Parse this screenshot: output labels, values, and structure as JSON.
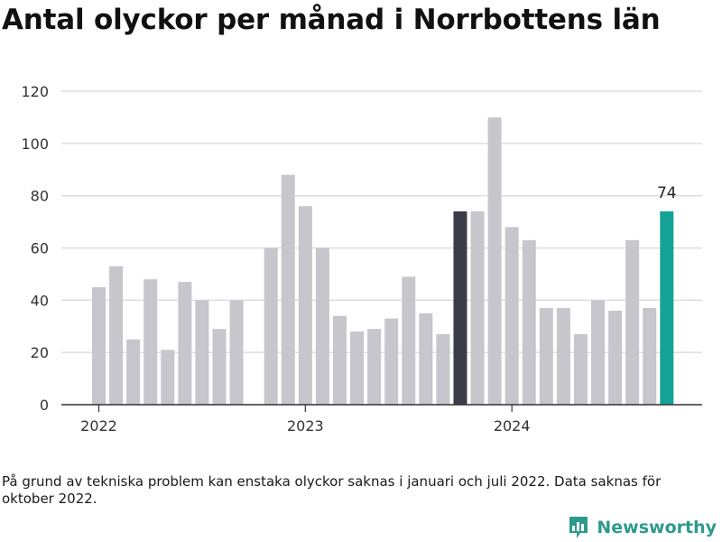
{
  "title": "Antal olyckor per månad i Norrbottens län",
  "note": "På grund av tekniska problem kan enstaka olyckor saknas i januari och juli 2022. Data saknas för oktober 2022.",
  "logo_text": "Newsworthy",
  "colors": {
    "default": "#c7c6cd",
    "highlight_dark": "#3c3b48",
    "highlight_latest": "#14a396",
    "grid": "#dddddd",
    "axis": "#333333"
  },
  "chart_data": {
    "type": "bar",
    "title": "Antal olyckor per månad i Norrbottens län",
    "xlabel": "",
    "ylabel": "",
    "ylim": [
      0,
      120
    ],
    "yticks": [
      0,
      20,
      40,
      60,
      80,
      100,
      120
    ],
    "grid": true,
    "x_tick_labels": [
      {
        "month": "2022-01",
        "label": "2022"
      },
      {
        "month": "2023-01",
        "label": "2023"
      },
      {
        "month": "2024-01",
        "label": "2024"
      }
    ],
    "data_labels": [
      {
        "month": "2024-10",
        "text": "74"
      }
    ],
    "categories": [
      "2022-01",
      "2022-02",
      "2022-03",
      "2022-04",
      "2022-05",
      "2022-06",
      "2022-07",
      "2022-08",
      "2022-09",
      "2022-10",
      "2022-11",
      "2022-12",
      "2023-01",
      "2023-02",
      "2023-03",
      "2023-04",
      "2023-05",
      "2023-06",
      "2023-07",
      "2023-08",
      "2023-09",
      "2023-10",
      "2023-11",
      "2023-12",
      "2024-01",
      "2024-02",
      "2024-03",
      "2024-04",
      "2024-05",
      "2024-06",
      "2024-07",
      "2024-08",
      "2024-09",
      "2024-10"
    ],
    "values": [
      45,
      53,
      25,
      48,
      21,
      47,
      40,
      29,
      40,
      null,
      60,
      88,
      76,
      60,
      34,
      28,
      29,
      33,
      49,
      35,
      27,
      74,
      74,
      110,
      68,
      63,
      37,
      37,
      27,
      40,
      36,
      63,
      37,
      74
    ],
    "highlights": {
      "2023-10": "highlight_dark",
      "2024-10": "highlight_latest"
    }
  }
}
